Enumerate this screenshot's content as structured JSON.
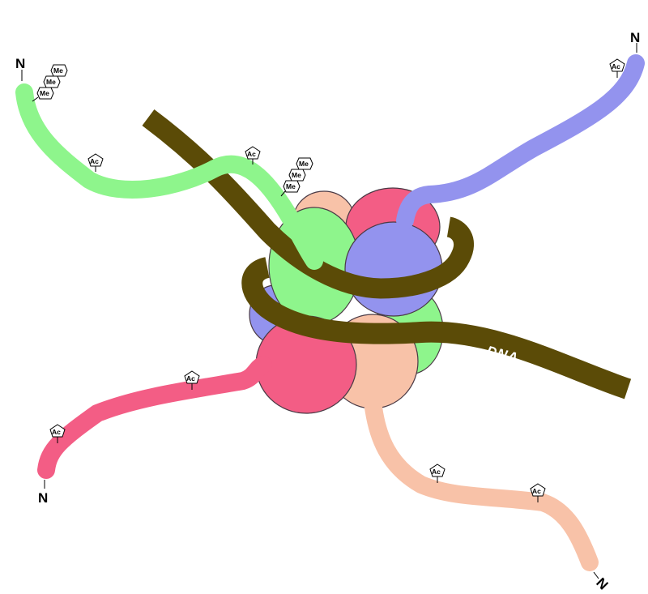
{
  "colors": {
    "green": "#8ef58c",
    "blue": "#9393ee",
    "pink": "#f35d85",
    "peach": "#f8c2a8",
    "dna": "#5b4b07",
    "outline": "#4a3a45"
  },
  "dna": {
    "label": "DNA"
  },
  "tails": [
    {
      "id": "green",
      "color_key": "green",
      "terminus": "N",
      "marks": [
        {
          "type": "Me",
          "label": "Me"
        },
        {
          "type": "Me",
          "label": "Me"
        },
        {
          "type": "Me",
          "label": "Me"
        },
        {
          "type": "Ac",
          "label": "Ac"
        },
        {
          "type": "Ac",
          "label": "Ac"
        },
        {
          "type": "Me",
          "label": "Me"
        },
        {
          "type": "Me",
          "label": "Me"
        },
        {
          "type": "Me",
          "label": "Me"
        }
      ]
    },
    {
      "id": "blue",
      "color_key": "blue",
      "terminus": "N",
      "marks": [
        {
          "type": "Ac",
          "label": "Ac"
        }
      ]
    },
    {
      "id": "pink",
      "color_key": "pink",
      "terminus": "N",
      "marks": [
        {
          "type": "Ac",
          "label": "Ac"
        },
        {
          "type": "Ac",
          "label": "Ac"
        }
      ]
    },
    {
      "id": "peach",
      "color_key": "peach",
      "terminus": "N",
      "marks": [
        {
          "type": "Ac",
          "label": "Ac"
        },
        {
          "type": "Ac",
          "label": "Ac"
        }
      ]
    }
  ]
}
